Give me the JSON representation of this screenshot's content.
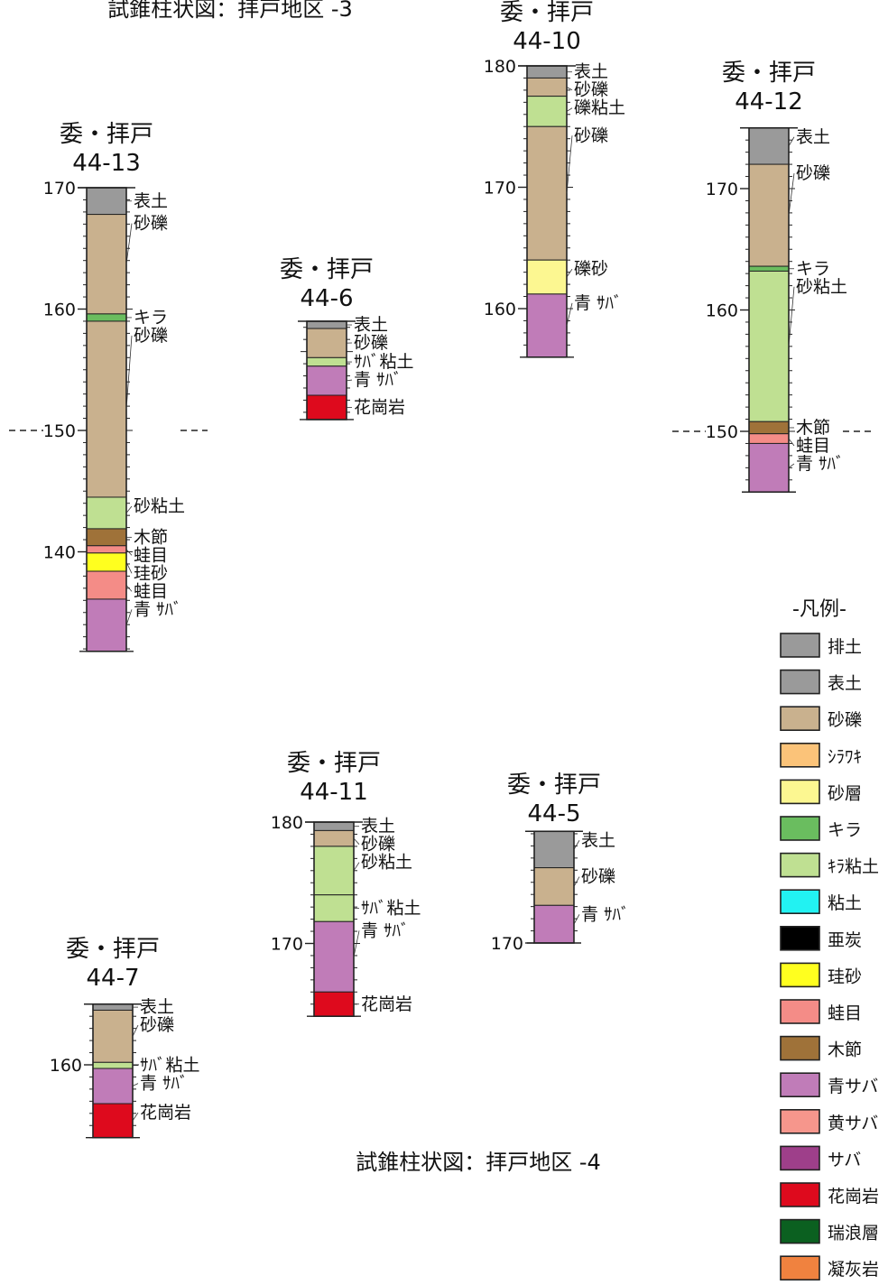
{
  "header": {
    "title_top": "試錐柱状図：拝戸地区 -3",
    "title_bottom": "試錐柱状図：拝戸地区 -4"
  },
  "colors": {
    "haido": "#9a9a9a",
    "hyodo": "#9a9a9a",
    "sareki": "#c9b18e",
    "shirawaki": "#fbc379",
    "sasou": "#fcf791",
    "kira": "#6abd5f",
    "kira_nendo": "#bfe092",
    "nendo": "#22f2f2",
    "atan": "#000000",
    "keisa": "#ffff1f",
    "gaeronome": "#f48c87",
    "kibushi": "#9f7239",
    "aosaba": "#c07cb8",
    "kisaba": "#f6968c",
    "saba": "#9e3f8a",
    "kakougan": "#de0a1d",
    "mizunami": "#0b6020",
    "gyoukaigan": "#f0823f"
  },
  "legend": {
    "title": "-凡例-",
    "items": [
      {
        "key": "haido",
        "label": "排土"
      },
      {
        "key": "hyodo",
        "label": "表土"
      },
      {
        "key": "sareki",
        "label": "砂礫"
      },
      {
        "key": "shirawaki",
        "label": "ｼﾗﾜｷ"
      },
      {
        "key": "sasou",
        "label": "砂層"
      },
      {
        "key": "kira",
        "label": "キラ"
      },
      {
        "key": "kira_nendo",
        "label": "ｷﾗ粘土"
      },
      {
        "key": "nendo",
        "label": "粘土"
      },
      {
        "key": "atan",
        "label": "亜炭"
      },
      {
        "key": "keisa",
        "label": "珪砂"
      },
      {
        "key": "gaeronome",
        "label": "蛙目"
      },
      {
        "key": "kibushi",
        "label": "木節"
      },
      {
        "key": "aosaba",
        "label": "青サバ"
      },
      {
        "key": "kisaba",
        "label": "黄サバ"
      },
      {
        "key": "saba",
        "label": "サバ"
      },
      {
        "key": "kakougan",
        "label": "花崗岩"
      },
      {
        "key": "mizunami",
        "label": "瑞浪層"
      },
      {
        "key": "gyoukaigan",
        "label": "凝灰岩"
      }
    ]
  },
  "boreholes": [
    {
      "id": "44-13",
      "title_line1": "委・拝戸",
      "title_line2": "44-13",
      "scale_labels": [
        "170",
        "160",
        "150",
        "140"
      ],
      "top_elev": 170.0,
      "bottom_elev": 131.8,
      "layers": [
        {
          "label": "表土",
          "key": "hyodo",
          "from": 170.0,
          "to": 167.8
        },
        {
          "label": "砂礫",
          "key": "sareki",
          "from": 167.8,
          "to": 159.6
        },
        {
          "label": "キラ",
          "key": "kira",
          "from": 159.6,
          "to": 159.0
        },
        {
          "label": "砂礫",
          "key": "sareki",
          "from": 159.0,
          "to": 144.5
        },
        {
          "label": "砂粘土",
          "key": "kira_nendo",
          "from": 144.5,
          "to": 141.9
        },
        {
          "label": "木節",
          "key": "kibushi",
          "from": 141.9,
          "to": 140.5
        },
        {
          "label": "蛙目",
          "key": "gaeronome",
          "from": 140.5,
          "to": 139.9
        },
        {
          "label": "珪砂",
          "key": "keisa",
          "from": 139.9,
          "to": 138.4
        },
        {
          "label": "蛙目",
          "key": "gaeronome",
          "from": 138.4,
          "to": 136.1
        },
        {
          "label": "青 ｻﾊﾞ",
          "key": "aosaba",
          "from": 136.1,
          "to": 131.8
        }
      ]
    },
    {
      "id": "44-6",
      "title_line1": "委・拝戸",
      "title_line2": "44-6",
      "scale_labels": [],
      "top_elev": 172.5,
      "bottom_elev": 164.4,
      "layers": [
        {
          "label": "表土",
          "key": "hyodo",
          "from": 172.5,
          "to": 171.9
        },
        {
          "label": "砂礫",
          "key": "sareki",
          "from": 171.9,
          "to": 169.5
        },
        {
          "label": "ｻﾊﾞ粘土",
          "key": "kira_nendo",
          "from": 169.5,
          "to": 168.8
        },
        {
          "label": "青 ｻﾊﾞ",
          "key": "aosaba",
          "from": 168.8,
          "to": 166.4
        },
        {
          "label": "花崗岩",
          "key": "kakougan",
          "from": 166.4,
          "to": 164.4
        }
      ]
    },
    {
      "id": "44-10",
      "title_line1": "委・拝戸",
      "title_line2": "44-10",
      "scale_labels": [
        "180",
        "170",
        "160"
      ],
      "top_elev": 180.0,
      "bottom_elev": 156.0,
      "layers": [
        {
          "label": "表土",
          "key": "hyodo",
          "from": 180.0,
          "to": 179.0
        },
        {
          "label": "砂礫",
          "key": "sareki",
          "from": 179.0,
          "to": 177.5
        },
        {
          "label": "礫粘土",
          "key": "kira_nendo",
          "from": 177.5,
          "to": 175.0
        },
        {
          "label": "砂礫",
          "key": "sareki",
          "from": 175.0,
          "to": 164.0
        },
        {
          "label": "礫砂",
          "key": "sasou",
          "from": 164.0,
          "to": 161.2
        },
        {
          "label": "青 ｻﾊﾞ",
          "key": "aosaba",
          "from": 161.2,
          "to": 156.0
        }
      ]
    },
    {
      "id": "44-12",
      "title_line1": "委・拝戸",
      "title_line2": "44-12",
      "scale_labels": [
        "170",
        "160",
        "150"
      ],
      "top_elev": 175.0,
      "bottom_elev": 145.0,
      "layers": [
        {
          "label": "表土",
          "key": "hyodo",
          "from": 175.0,
          "to": 172.0
        },
        {
          "label": "砂礫",
          "key": "sareki",
          "from": 172.0,
          "to": 163.6
        },
        {
          "label": "キラ",
          "key": "kira",
          "from": 163.6,
          "to": 163.2
        },
        {
          "label": "砂粘土",
          "key": "kira_nendo",
          "from": 163.2,
          "to": 150.8
        },
        {
          "label": "木節",
          "key": "kibushi",
          "from": 150.8,
          "to": 149.8
        },
        {
          "label": "蛙目",
          "key": "gaeronome",
          "from": 149.8,
          "to": 149.0
        },
        {
          "label": "青 ｻﾊﾞ",
          "key": "aosaba",
          "from": 149.0,
          "to": 145.0
        }
      ]
    },
    {
      "id": "44-11",
      "title_line1": "委・拝戸",
      "title_line2": "44-11",
      "scale_labels": [
        "180",
        "170"
      ],
      "top_elev": 180.0,
      "bottom_elev": 164.0,
      "layers": [
        {
          "label": "表土",
          "key": "hyodo",
          "from": 180.0,
          "to": 179.3
        },
        {
          "label": "砂礫",
          "key": "sareki",
          "from": 179.3,
          "to": 178.0
        },
        {
          "label": "砂粘土",
          "key": "kira_nendo",
          "from": 178.0,
          "to": 174.0
        },
        {
          "label": "ｻﾊﾞ粘土",
          "key": "kira_nendo",
          "from": 174.0,
          "to": 171.8
        },
        {
          "label": "青 ｻﾊﾞ",
          "key": "aosaba",
          "from": 171.8,
          "to": 166.0
        },
        {
          "label": "花崗岩",
          "key": "kakougan",
          "from": 166.0,
          "to": 164.0
        }
      ]
    },
    {
      "id": "44-5",
      "title_line1": "委・拝戸",
      "title_line2": "44-5",
      "scale_labels": [
        "170"
      ],
      "top_elev": 179.2,
      "bottom_elev": 170.0,
      "layers": [
        {
          "label": "表土",
          "key": "hyodo",
          "from": 179.2,
          "to": 176.2
        },
        {
          "label": "砂礫",
          "key": "sareki",
          "from": 176.2,
          "to": 173.1
        },
        {
          "label": "青 ｻﾊﾞ",
          "key": "aosaba",
          "from": 173.1,
          "to": 170.0
        }
      ]
    },
    {
      "id": "44-7",
      "title_line1": "委・拝戸",
      "title_line2": "44-7",
      "scale_labels": [
        "160"
      ],
      "top_elev": 165.0,
      "bottom_elev": 154.0,
      "layers": [
        {
          "label": "表土",
          "key": "hyodo",
          "from": 165.0,
          "to": 164.5
        },
        {
          "label": "砂礫",
          "key": "sareki",
          "from": 164.5,
          "to": 160.2
        },
        {
          "label": "ｻﾊﾞ粘土",
          "key": "kira_nendo",
          "from": 160.2,
          "to": 159.7
        },
        {
          "label": "青 ｻﾊﾞ",
          "key": "aosaba",
          "from": 159.7,
          "to": 156.8
        },
        {
          "label": "花崗岩",
          "key": "kakougan",
          "from": 156.8,
          "to": 154.0
        }
      ]
    }
  ]
}
